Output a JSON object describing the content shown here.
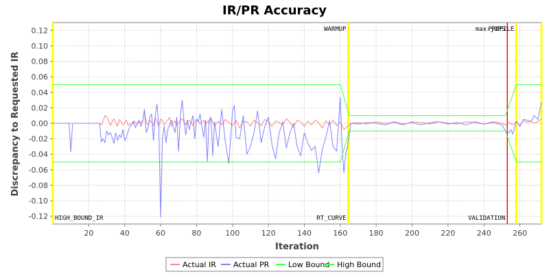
{
  "chart_data": {
    "type": "line",
    "title": "IR/PR Accuracy",
    "xlabel": "Iteration",
    "ylabel": "Discrepancy to Requested IR",
    "xlim": [
      0,
      272
    ],
    "ylim": [
      -0.13,
      0.13
    ],
    "xticks": [
      20,
      40,
      60,
      80,
      100,
      120,
      140,
      160,
      180,
      200,
      220,
      240,
      260
    ],
    "yticks": [
      -0.12,
      -0.1,
      -0.08,
      -0.06,
      -0.04,
      -0.02,
      0.0,
      0.02,
      0.04,
      0.06,
      0.08,
      0.1,
      0.12
    ],
    "ytick_labels": [
      "-0.12",
      "-0.10",
      "-0.08",
      "-0.06",
      "-0.04",
      "-0.02",
      "0.00",
      "0.02",
      "0.04",
      "0.06",
      "0.08",
      "0.10",
      "0.12"
    ],
    "grid": true,
    "legend_position": "bottom",
    "markers": [
      {
        "x": 0,
        "top_label": "",
        "bottom_label": "HIGH_BOUND_IR",
        "color": "#ffff00"
      },
      {
        "x": 164.5,
        "top_label": "WARMUP",
        "bottom_label": "RT_CURVE",
        "color": "#ffff00"
      },
      {
        "x": 253,
        "top_label": "max-jOPS",
        "bottom_label": "VALIDATION",
        "color": "#ff0000"
      },
      {
        "x": 258,
        "top_label": "PROFILE",
        "bottom_label": "",
        "color": "#ffff00"
      },
      {
        "x": 272,
        "top_label": "",
        "bottom_label": "",
        "color": "#ffff00"
      }
    ],
    "series": [
      {
        "name": "Actual IR",
        "color": "#ff8080",
        "x": [
          0,
          26,
          27,
          28,
          29,
          30,
          31,
          32,
          33,
          34,
          35,
          36,
          37,
          38,
          39,
          40,
          41,
          42,
          43,
          44,
          45,
          46,
          47,
          48,
          49,
          50,
          51,
          52,
          53,
          54,
          55,
          56,
          57,
          58,
          59,
          60,
          61,
          62,
          63,
          64,
          65,
          66,
          67,
          68,
          69,
          70,
          71,
          72,
          73,
          74,
          75,
          76,
          77,
          78,
          79,
          80,
          81,
          82,
          83,
          84,
          85,
          86,
          87,
          88,
          89,
          90,
          92,
          94,
          96,
          98,
          100,
          102,
          104,
          106,
          108,
          110,
          112,
          114,
          116,
          118,
          120,
          122,
          124,
          126,
          128,
          130,
          132,
          134,
          136,
          138,
          140,
          142,
          144,
          146,
          148,
          150,
          152,
          154,
          156,
          158,
          160,
          162,
          164,
          166,
          170,
          175,
          180,
          185,
          190,
          195,
          200,
          205,
          210,
          215,
          220,
          225,
          230,
          235,
          240,
          245,
          250,
          252,
          254,
          256,
          258,
          260,
          262,
          264,
          266,
          268,
          270,
          272
        ],
        "values": [
          0,
          0,
          -0.002,
          0.003,
          0.01,
          0.008,
          0.004,
          -0.003,
          0.002,
          0.006,
          0.001,
          -0.004,
          0.005,
          0.002,
          -0.002,
          0.001,
          0.004,
          -0.003,
          -0.001,
          0.0,
          0.003,
          0.001,
          -0.001,
          0.002,
          0.001,
          0.004,
          0.014,
          0.002,
          -0.002,
          0.004,
          0.001,
          -0.003,
          0.008,
          0.002,
          -0.004,
          0.006,
          0.003,
          -0.002,
          0.001,
          0.004,
          0.008,
          -0.004,
          0.002,
          0.003,
          -0.003,
          0.001,
          0.004,
          0.006,
          0.002,
          -0.002,
          0.004,
          0.003,
          0.001,
          -0.003,
          0.002,
          0.005,
          0.003,
          -0.001,
          0.002,
          0.004,
          -0.002,
          0.003,
          0.001,
          0.006,
          0.002,
          -0.004,
          0.003,
          -0.002,
          0.005,
          0.001,
          -0.003,
          0.004,
          -0.006,
          0.003,
          0.002,
          -0.004,
          0.004,
          0.001,
          -0.003,
          0.005,
          0.002,
          -0.004,
          0.003,
          0.001,
          -0.002,
          0.006,
          0.001,
          -0.005,
          0.004,
          0.002,
          -0.004,
          0.003,
          -0.002,
          0.004,
          0.001,
          -0.006,
          0.003,
          -0.002,
          0.004,
          -0.003,
          0.002,
          -0.008,
          -0.004,
          0.0,
          0.001,
          -0.001,
          0.002,
          0.0,
          0.001,
          -0.002,
          0.002,
          0.001,
          -0.001,
          0.002,
          0.0,
          -0.001,
          0.002,
          0.001,
          -0.001,
          0.002,
          0.0,
          -0.002,
          0.001,
          -0.002,
          0.002,
          -0.003,
          0.004,
          0.001,
          0.003,
          0.0,
          0.002,
          0.006
        ]
      },
      {
        "name": "Actual PR",
        "color": "#8080ff",
        "x": [
          0,
          9,
          10,
          11,
          12,
          26,
          27,
          28,
          29,
          30,
          31,
          32,
          33,
          34,
          35,
          36,
          37,
          38,
          39,
          40,
          41,
          42,
          43,
          44,
          45,
          46,
          47,
          48,
          49,
          50,
          51,
          52,
          53,
          54,
          55,
          56,
          57,
          58,
          59,
          60,
          61,
          62,
          63,
          64,
          65,
          66,
          67,
          68,
          69,
          70,
          71,
          72,
          73,
          74,
          75,
          76,
          77,
          78,
          79,
          80,
          81,
          82,
          83,
          84,
          85,
          86,
          87,
          88,
          89,
          90,
          92,
          94,
          96,
          98,
          100,
          101,
          102,
          104,
          106,
          108,
          110,
          112,
          114,
          116,
          118,
          120,
          122,
          124,
          126,
          128,
          130,
          132,
          134,
          136,
          138,
          140,
          142,
          144,
          146,
          148,
          150,
          152,
          154,
          156,
          158,
          160,
          161,
          162,
          163,
          164,
          166,
          170,
          175,
          180,
          185,
          190,
          195,
          200,
          205,
          210,
          215,
          220,
          225,
          230,
          235,
          240,
          245,
          250,
          252,
          254,
          255,
          256,
          258,
          260,
          262,
          264,
          266,
          268,
          270,
          272
        ],
        "values": [
          0,
          0,
          -0.037,
          0,
          0,
          0,
          -0.024,
          -0.02,
          -0.025,
          -0.01,
          -0.015,
          -0.012,
          -0.018,
          -0.026,
          -0.012,
          -0.022,
          -0.015,
          -0.018,
          -0.008,
          -0.022,
          -0.018,
          -0.01,
          -0.004,
          -0.002,
          0.002,
          -0.006,
          0.0,
          0.004,
          -0.004,
          0.002,
          0.018,
          -0.012,
          -0.006,
          0.008,
          0.012,
          -0.022,
          0.01,
          0.025,
          -0.004,
          -0.121,
          -0.02,
          -0.004,
          -0.025,
          -0.008,
          -0.002,
          0.004,
          -0.004,
          -0.012,
          0.008,
          -0.036,
          0.01,
          0.03,
          0.003,
          -0.015,
          0.004,
          -0.008,
          0.002,
          0.01,
          -0.02,
          0.006,
          0.002,
          0.012,
          -0.005,
          -0.018,
          0.004,
          -0.05,
          0.004,
          0.008,
          -0.042,
          0.002,
          -0.03,
          0.018,
          -0.024,
          -0.052,
          0.016,
          0.023,
          -0.018,
          -0.02,
          0.01,
          -0.04,
          -0.03,
          -0.012,
          0.016,
          -0.025,
          -0.004,
          0.008,
          -0.028,
          -0.046,
          -0.012,
          0.002,
          -0.032,
          -0.012,
          0.0,
          -0.03,
          -0.042,
          -0.012,
          -0.026,
          -0.035,
          -0.03,
          -0.064,
          -0.034,
          -0.018,
          0.003,
          -0.03,
          -0.036,
          0.034,
          -0.03,
          -0.064,
          -0.04,
          -0.03,
          0.0,
          -0.001,
          0.001,
          0.0,
          -0.002,
          0.002,
          -0.001,
          0.001,
          -0.002,
          0.001,
          0.002,
          -0.001,
          0.001,
          -0.002,
          0.002,
          -0.001,
          0.001,
          -0.002,
          -0.01,
          -0.012,
          -0.008,
          -0.014,
          0.003,
          -0.004,
          0.005,
          0.004,
          0.002,
          0.01,
          0.005,
          0.027
        ]
      },
      {
        "name": "Low Bound",
        "color": "#40ff40",
        "x": [
          0,
          160,
          165,
          252,
          258,
          272
        ],
        "values": [
          -0.05,
          -0.05,
          -0.01,
          -0.01,
          -0.05,
          -0.05
        ]
      },
      {
        "name": "High Bound",
        "color": "#40ff40",
        "x": [
          0,
          160,
          165,
          252,
          258,
          272
        ],
        "values": [
          0.05,
          0.05,
          0.01,
          0.01,
          0.05,
          0.05
        ]
      }
    ]
  }
}
